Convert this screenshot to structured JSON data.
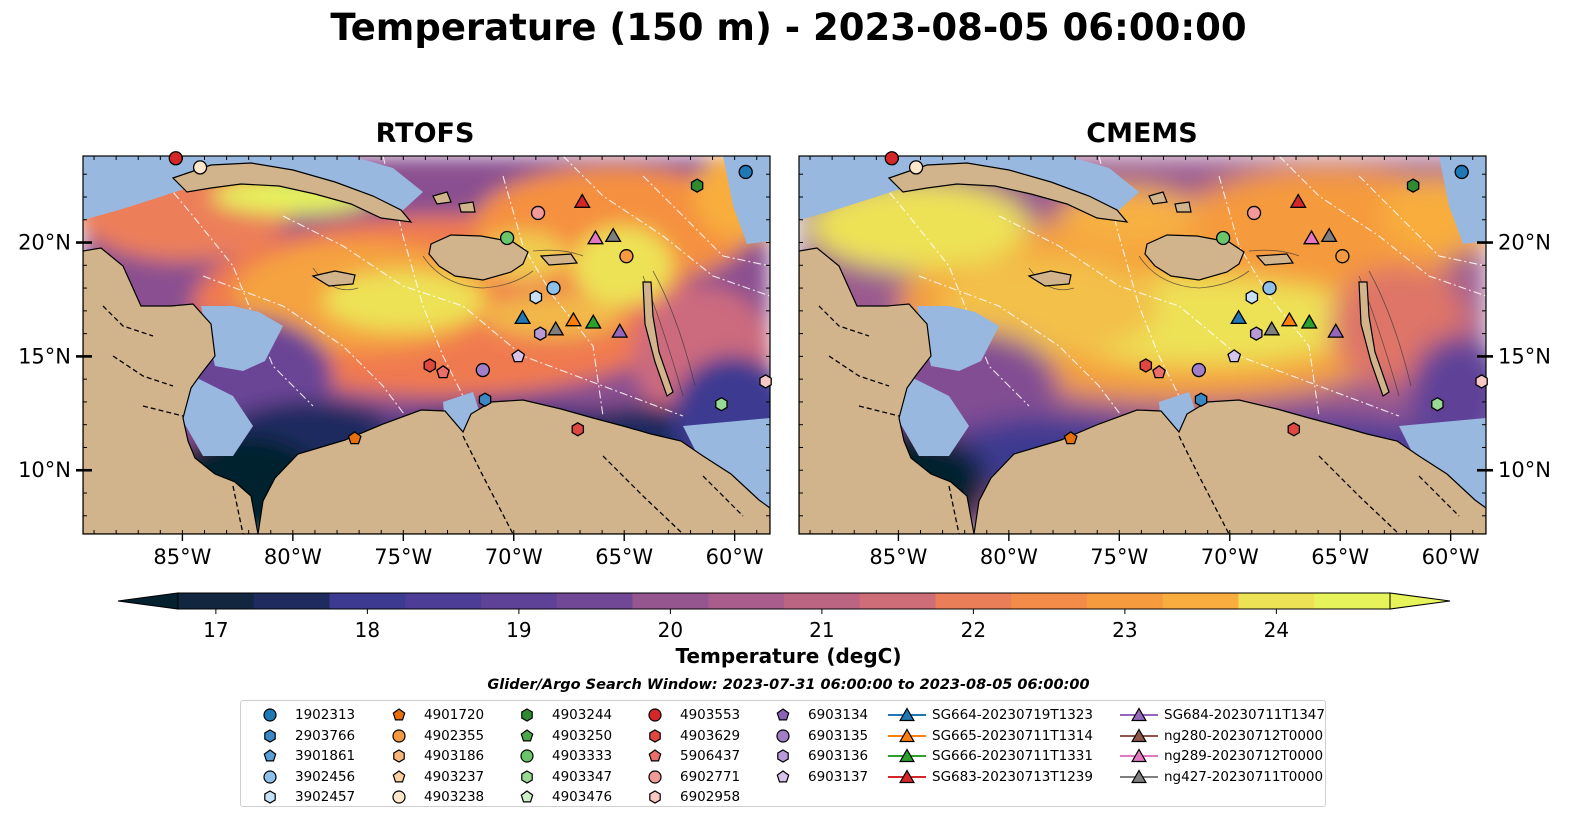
{
  "title": "Temperature (150 m) - 2023-08-05 06:00:00",
  "panels": [
    {
      "title": "RTOFS",
      "style": "rtofs"
    },
    {
      "title": "CMEMS",
      "style": "cmems"
    }
  ],
  "axes": {
    "lon_ticks": [
      -85,
      -80,
      -75,
      -70,
      -65,
      -60
    ],
    "lon_labels": [
      "85°W",
      "80°W",
      "75°W",
      "70°W",
      "65°W",
      "60°W"
    ],
    "lat_ticks": [
      10,
      15,
      20
    ],
    "lat_labels": [
      "10°N",
      "15°N",
      "20°N"
    ],
    "lon_range": [
      -89.5,
      -58.4
    ],
    "lat_range": [
      7.2,
      23.8
    ]
  },
  "colorbar": {
    "label": "Temperature (degC)",
    "ticks": [
      17,
      18,
      19,
      20,
      21,
      22,
      23,
      24
    ],
    "min": 16.75,
    "max": 24.75,
    "extend": "both",
    "colormap": [
      "#05202f",
      "#132640",
      "#1f2b5e",
      "#2e3180",
      "#3d3a91",
      "#4d3d97",
      "#5e4298",
      "#704896",
      "#824e93",
      "#955690",
      "#a85d8c",
      "#bc6583",
      "#ce6c78",
      "#de7468",
      "#ea7e58",
      "#f38c48",
      "#f79c3e",
      "#f8ad3e",
      "#f5c14a",
      "#ede256",
      "#e6f35b"
    ]
  },
  "land_color": "#d2b48c",
  "shallow_color": "#99b8e0",
  "window_label": "Glider/Argo Search Window: 2023-07-31 06:00:00 to 2023-08-05 06:00:00",
  "legend": {
    "columns": [
      [
        {
          "label": "1902313",
          "marker": "circle",
          "color": "#1f77b4"
        },
        {
          "label": "2903766",
          "marker": "hexagon",
          "color": "#3a87c4"
        },
        {
          "label": "3901861",
          "marker": "pentagon",
          "color": "#5a9fd4"
        },
        {
          "label": "3902456",
          "marker": "circle",
          "color": "#8fc1e8"
        },
        {
          "label": "3902457",
          "marker": "hexagon",
          "color": "#c6e0f5"
        }
      ],
      [
        {
          "label": "4901720",
          "marker": "pentagon",
          "color": "#e6710c"
        },
        {
          "label": "4902355",
          "marker": "circle",
          "color": "#f59a40"
        },
        {
          "label": "4903186",
          "marker": "hexagon",
          "color": "#f8b67a"
        },
        {
          "label": "4903237",
          "marker": "pentagon",
          "color": "#fbcf9f"
        },
        {
          "label": "4903238",
          "marker": "circle",
          "color": "#fde7cc"
        }
      ],
      [
        {
          "label": "4903244",
          "marker": "hexagon",
          "color": "#2e8b30"
        },
        {
          "label": "4903250",
          "marker": "pentagon",
          "color": "#49a84a"
        },
        {
          "label": "4903333",
          "marker": "circle",
          "color": "#6ac46a"
        },
        {
          "label": "4903347",
          "marker": "hexagon",
          "color": "#98d994"
        },
        {
          "label": "4903476",
          "marker": "pentagon",
          "color": "#cdefc7"
        }
      ],
      [
        {
          "label": "4903553",
          "marker": "circle",
          "color": "#d62728"
        },
        {
          "label": "4903629",
          "marker": "hexagon",
          "color": "#e0473f"
        },
        {
          "label": "5906437",
          "marker": "pentagon",
          "color": "#ea6f6a"
        },
        {
          "label": "6902771",
          "marker": "circle",
          "color": "#f29a97"
        },
        {
          "label": "6902958",
          "marker": "hexagon",
          "color": "#f8c8c4"
        }
      ],
      [
        {
          "label": "6903134",
          "marker": "pentagon",
          "color": "#8a62b8"
        },
        {
          "label": "6903135",
          "marker": "circle",
          "color": "#a17fc8"
        },
        {
          "label": "6903136",
          "marker": "hexagon",
          "color": "#b79ad6"
        },
        {
          "label": "6903137",
          "marker": "pentagon",
          "color": "#d6c4ea"
        }
      ],
      [
        {
          "label": "SG664-20230719T1323",
          "marker": "triangle",
          "color": "#1f77b4",
          "line": true
        },
        {
          "label": "SG665-20230711T1314",
          "marker": "triangle",
          "color": "#ff7f0e",
          "line": true
        },
        {
          "label": "SG666-20230711T1331",
          "marker": "triangle",
          "color": "#2ca02c",
          "line": true
        },
        {
          "label": "SG683-20230713T1239",
          "marker": "triangle",
          "color": "#d62728",
          "line": true
        }
      ],
      [
        {
          "label": "SG684-20230711T1347",
          "marker": "triangle",
          "color": "#9467bd",
          "line": true
        },
        {
          "label": "ng280-20230712T0000",
          "marker": "triangle",
          "color": "#8c564b",
          "line": true
        },
        {
          "label": "ng289-20230712T0000",
          "marker": "triangle",
          "color": "#e377c2",
          "line": true
        },
        {
          "label": "ng427-20230711T0000",
          "marker": "triangle",
          "color": "#7f7f7f",
          "line": true
        }
      ]
    ]
  },
  "observations": [
    {
      "marker": "circle",
      "color": "#d62728",
      "lon": -85.3,
      "lat": 23.7
    },
    {
      "marker": "circle",
      "color": "#fde7cc",
      "lon": -84.2,
      "lat": 23.3
    },
    {
      "marker": "circle",
      "color": "#1f77b4",
      "lon": -59.5,
      "lat": 23.1
    },
    {
      "marker": "hexagon",
      "color": "#2e8b30",
      "lon": -61.7,
      "lat": 22.5
    },
    {
      "marker": "triangle",
      "color": "#d62728",
      "lon": -66.9,
      "lat": 21.8
    },
    {
      "marker": "circle",
      "color": "#f29a97",
      "lon": -68.9,
      "lat": 21.3
    },
    {
      "marker": "circle",
      "color": "#6ac46a",
      "lon": -70.3,
      "lat": 20.2
    },
    {
      "marker": "triangle",
      "color": "#e377c2",
      "lon": -66.3,
      "lat": 20.2
    },
    {
      "marker": "triangle",
      "color": "#7f7f7f",
      "lon": -65.5,
      "lat": 20.3
    },
    {
      "marker": "circle",
      "color": "#f59a40",
      "lon": -64.9,
      "lat": 19.4
    },
    {
      "marker": "circle",
      "color": "#8fc1e8",
      "lon": -68.2,
      "lat": 18.0
    },
    {
      "marker": "hexagon",
      "color": "#c6e0f5",
      "lon": -69.0,
      "lat": 17.6
    },
    {
      "marker": "triangle",
      "color": "#1f77b4",
      "lon": -69.6,
      "lat": 16.7
    },
    {
      "marker": "triangle",
      "color": "#7f7f7f",
      "lon": -68.1,
      "lat": 16.2
    },
    {
      "marker": "hexagon",
      "color": "#b79ad6",
      "lon": -68.8,
      "lat": 16.0
    },
    {
      "marker": "triangle",
      "color": "#ff7f0e",
      "lon": -67.3,
      "lat": 16.6
    },
    {
      "marker": "triangle",
      "color": "#2ca02c",
      "lon": -66.4,
      "lat": 16.5
    },
    {
      "marker": "triangle",
      "color": "#9467bd",
      "lon": -65.2,
      "lat": 16.1
    },
    {
      "marker": "pentagon",
      "color": "#d6c4ea",
      "lon": -69.8,
      "lat": 15.0
    },
    {
      "marker": "hexagon",
      "color": "#e0473f",
      "lon": -73.8,
      "lat": 14.6
    },
    {
      "marker": "pentagon",
      "color": "#ea6f6a",
      "lon": -73.2,
      "lat": 14.3
    },
    {
      "marker": "circle",
      "color": "#a17fc8",
      "lon": -71.4,
      "lat": 14.4
    },
    {
      "marker": "hexagon",
      "color": "#3a87c4",
      "lon": -71.3,
      "lat": 13.1
    },
    {
      "marker": "hexagon",
      "color": "#f8c8c4",
      "lon": -58.6,
      "lat": 13.9
    },
    {
      "marker": "hexagon",
      "color": "#98d994",
      "lon": -60.6,
      "lat": 12.9
    },
    {
      "marker": "pentagon",
      "color": "#e6710c",
      "lon": -77.2,
      "lat": 11.4
    },
    {
      "marker": "hexagon",
      "color": "#e0473f",
      "lon": -67.1,
      "lat": 11.8
    }
  ]
}
